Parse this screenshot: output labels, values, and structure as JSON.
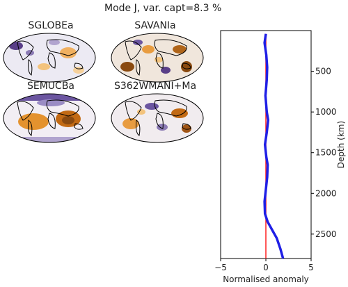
{
  "title": "Mode J, var. capt=8.3 %",
  "maps": [
    {
      "label": "SGLOBEa"
    },
    {
      "label": "SAVANIa"
    },
    {
      "label": "SEMUCBa"
    },
    {
      "label": "S362WMANI+Ma"
    }
  ],
  "chart_data": {
    "type": "line",
    "xlabel": "Normalised anomaly",
    "ylabel": "Depth (km)",
    "xlim": [
      -5,
      5
    ],
    "ylim": [
      2800,
      0
    ],
    "xticks": [
      -5,
      0,
      5
    ],
    "yticks": [
      500,
      1000,
      1500,
      2000,
      2500
    ],
    "series": [
      {
        "color": "#ff2020",
        "points": [
          [
            0,
            40
          ],
          [
            0,
            2800
          ]
        ]
      },
      {
        "color": "#1f1fe6",
        "points": [
          [
            0.0,
            40
          ],
          [
            -0.15,
            150
          ],
          [
            0.05,
            300
          ],
          [
            0.15,
            450
          ],
          [
            0.1,
            600
          ],
          [
            -0.05,
            800
          ],
          [
            0.1,
            1000
          ],
          [
            0.25,
            1100
          ],
          [
            0.1,
            1250
          ],
          [
            -0.1,
            1400
          ],
          [
            0.05,
            1550
          ],
          [
            0.2,
            1650
          ],
          [
            0.15,
            1800
          ],
          [
            0.0,
            1950
          ],
          [
            -0.15,
            2100
          ],
          [
            -0.1,
            2250
          ],
          [
            0.2,
            2350
          ],
          [
            0.7,
            2450
          ],
          [
            1.2,
            2550
          ],
          [
            1.6,
            2680
          ],
          [
            1.9,
            2800
          ]
        ]
      }
    ]
  },
  "colors": {
    "blue": "#1f1fe6",
    "red": "#ff2020",
    "purple": "#3b2060",
    "orange": "#e8921e"
  }
}
